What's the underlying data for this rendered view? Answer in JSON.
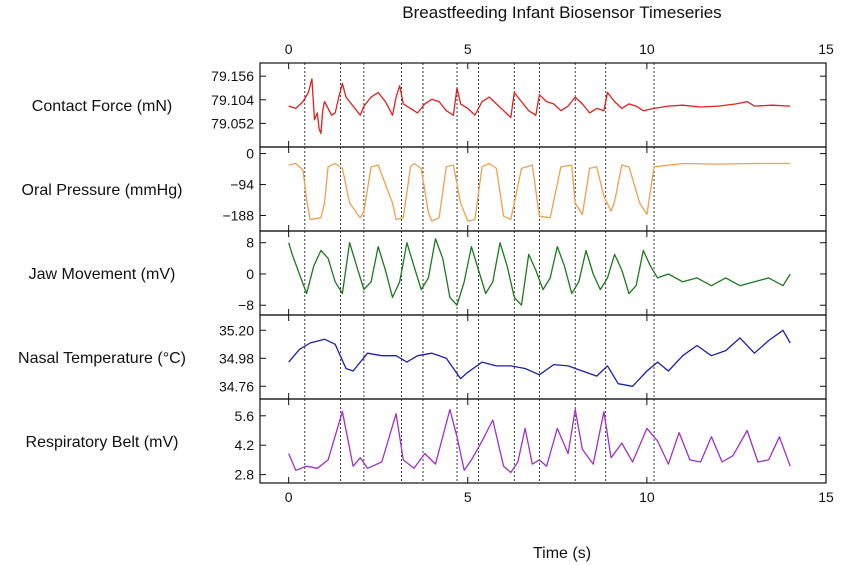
{
  "chart_data": {
    "type": "line",
    "title": "Breastfeeding Infant Biosensor Timeseries",
    "xlabel": "Time (s)",
    "xlim": [
      -0.8,
      15
    ],
    "xticks": [
      0,
      5,
      10,
      15
    ],
    "xtick_labels": [
      "0",
      "5",
      "10",
      "15"
    ],
    "event_lines_s": [
      0.45,
      1.45,
      2.1,
      3.15,
      3.75,
      4.7,
      5.3,
      6.3,
      7.0,
      8.0,
      8.85,
      10.2
    ],
    "panels": [
      {
        "id": "contact-force",
        "ylabel": "Contact Force (mN)",
        "color": "#e02020",
        "ylim": [
          79.0,
          79.185
        ],
        "yticks": [
          79.052,
          79.104,
          79.156
        ],
        "ytick_labels": [
          "79.052",
          "79.104",
          "79.156"
        ],
        "x": [
          0,
          0.2,
          0.4,
          0.55,
          0.65,
          0.72,
          0.8,
          0.85,
          0.9,
          0.95,
          1.0,
          1.1,
          1.2,
          1.3,
          1.4,
          1.5,
          1.6,
          1.8,
          2.0,
          2.1,
          2.3,
          2.5,
          2.7,
          2.9,
          3.0,
          3.1,
          3.2,
          3.4,
          3.6,
          3.8,
          4.0,
          4.2,
          4.4,
          4.6,
          4.7,
          4.8,
          5.0,
          5.2,
          5.4,
          5.6,
          5.8,
          6.0,
          6.2,
          6.3,
          6.5,
          6.7,
          6.9,
          7.0,
          7.2,
          7.4,
          7.6,
          7.8,
          8.0,
          8.2,
          8.4,
          8.6,
          8.8,
          8.9,
          9.1,
          9.3,
          9.5,
          9.7,
          9.9,
          10.2,
          10.6,
          11.0,
          11.5,
          12.0,
          12.5,
          12.8,
          13.0,
          13.5,
          14.0
        ],
        "y": [
          79.09,
          79.085,
          79.1,
          79.12,
          79.15,
          79.06,
          79.075,
          79.04,
          79.03,
          79.08,
          79.1,
          79.085,
          79.07,
          79.075,
          79.11,
          79.14,
          79.11,
          79.09,
          79.07,
          79.09,
          79.11,
          79.12,
          79.1,
          79.07,
          79.11,
          79.135,
          79.095,
          79.085,
          79.075,
          79.095,
          79.105,
          79.1,
          79.08,
          79.07,
          79.13,
          79.095,
          79.085,
          79.07,
          79.1,
          79.11,
          79.095,
          79.08,
          79.065,
          79.12,
          79.1,
          79.08,
          79.07,
          79.115,
          79.1,
          79.095,
          79.08,
          79.09,
          79.11,
          79.095,
          79.075,
          79.085,
          79.08,
          79.12,
          79.1,
          79.085,
          79.095,
          79.09,
          79.08,
          79.085,
          79.09,
          79.092,
          79.088,
          79.09,
          79.095,
          79.1,
          79.09,
          79.092,
          79.09
        ]
      },
      {
        "id": "oral-pressure",
        "ylabel": "Oral Pressure (mmHg)",
        "color": "#f0a050",
        "ylim": [
          -235,
          20
        ],
        "yticks": [
          -188,
          -94,
          0
        ],
        "ytick_labels": [
          "−188",
          "−94",
          "0"
        ],
        "x": [
          0,
          0.2,
          0.4,
          0.5,
          0.6,
          0.9,
          1.0,
          1.1,
          1.3,
          1.5,
          1.7,
          2.0,
          2.1,
          2.3,
          2.5,
          2.9,
          3.0,
          3.2,
          3.4,
          3.5,
          3.7,
          3.9,
          4.0,
          4.2,
          4.4,
          4.6,
          4.8,
          5.0,
          5.2,
          5.4,
          5.6,
          5.8,
          6.0,
          6.2,
          6.5,
          6.8,
          7.0,
          7.3,
          7.6,
          7.9,
          8.0,
          8.2,
          8.4,
          8.6,
          8.8,
          9.0,
          9.1,
          9.3,
          9.5,
          9.8,
          10.0,
          10.2,
          11.0,
          12.0,
          13.0,
          14.0
        ],
        "y": [
          -35,
          -30,
          -50,
          -140,
          -200,
          -195,
          -150,
          -40,
          -30,
          -45,
          -150,
          -195,
          -175,
          -40,
          -35,
          -150,
          -200,
          -195,
          -40,
          -30,
          -45,
          -180,
          -205,
          -195,
          -40,
          -35,
          -150,
          -205,
          -200,
          -40,
          -30,
          -45,
          -190,
          -200,
          -45,
          -35,
          -190,
          -195,
          -40,
          -35,
          -150,
          -185,
          -45,
          -40,
          -130,
          -175,
          -145,
          -35,
          -40,
          -150,
          -185,
          -40,
          -30,
          -32,
          -30,
          -30
        ]
      },
      {
        "id": "jaw-movement",
        "ylabel": "Jaw Movement (mV)",
        "color": "#1c7a1c",
        "ylim": [
          -10.5,
          11
        ],
        "yticks": [
          -8,
          0,
          8
        ],
        "ytick_labels": [
          "−8",
          "0",
          "8"
        ],
        "x": [
          0,
          0.1,
          0.3,
          0.5,
          0.7,
          0.9,
          1.1,
          1.3,
          1.5,
          1.7,
          1.9,
          2.1,
          2.3,
          2.5,
          2.7,
          2.9,
          3.1,
          3.3,
          3.5,
          3.7,
          3.9,
          4.1,
          4.3,
          4.5,
          4.7,
          4.9,
          5.1,
          5.3,
          5.5,
          5.7,
          5.9,
          6.1,
          6.3,
          6.5,
          6.7,
          6.9,
          7.1,
          7.3,
          7.5,
          7.7,
          7.9,
          8.1,
          8.3,
          8.5,
          8.7,
          8.9,
          9.1,
          9.3,
          9.5,
          9.7,
          9.9,
          10.1,
          10.3,
          10.6,
          11.0,
          11.4,
          11.8,
          12.2,
          12.6,
          13.0,
          13.4,
          13.8,
          14.0
        ],
        "y": [
          8,
          5,
          0,
          -5,
          2,
          6,
          4,
          -2,
          -5,
          8,
          2,
          -4,
          -2,
          7,
          1,
          -6,
          -2,
          8,
          2,
          -4,
          -1,
          9,
          4,
          -6,
          -8,
          -2,
          7,
          1,
          -5,
          -2,
          8,
          2,
          -6,
          -8,
          5,
          1,
          -4,
          -1,
          7,
          2,
          -5,
          -2,
          6,
          0,
          -4,
          -1,
          5,
          1,
          -5,
          -3,
          6,
          2,
          -1,
          0,
          -2,
          -1,
          -3,
          -1,
          -3,
          -2,
          -1,
          -3,
          0
        ]
      },
      {
        "id": "nasal-temperature",
        "ylabel": "Nasal Temperature (°C)",
        "color": "#1f1fb0",
        "ylim": [
          34.66,
          35.32
        ],
        "yticks": [
          34.76,
          34.98,
          35.2
        ],
        "ytick_labels": [
          "34.76",
          "34.98",
          "35.20"
        ],
        "x": [
          0,
          0.3,
          0.6,
          1.0,
          1.3,
          1.6,
          1.8,
          2.2,
          2.6,
          3.0,
          3.3,
          3.6,
          4.0,
          4.4,
          4.8,
          5.0,
          5.4,
          5.8,
          6.2,
          6.6,
          7.0,
          7.4,
          7.8,
          8.2,
          8.6,
          8.9,
          9.2,
          9.6,
          10.0,
          10.3,
          10.6,
          11.0,
          11.4,
          11.8,
          12.2,
          12.6,
          13.0,
          13.4,
          13.8,
          14.0
        ],
        "y": [
          34.95,
          35.05,
          35.1,
          35.13,
          35.09,
          34.9,
          34.88,
          35.02,
          35.0,
          35.0,
          34.95,
          35.0,
          35.02,
          34.98,
          34.82,
          34.87,
          34.95,
          34.92,
          34.92,
          34.9,
          34.85,
          34.93,
          34.92,
          34.88,
          34.84,
          34.92,
          34.78,
          34.76,
          34.88,
          34.95,
          34.88,
          35.0,
          35.08,
          35.0,
          35.04,
          35.14,
          35.02,
          35.12,
          35.2,
          35.1
        ]
      },
      {
        "id": "respiratory-belt",
        "ylabel": "Respiratory Belt (mV)",
        "color": "#a030c8",
        "ylim": [
          2.4,
          6.4
        ],
        "yticks": [
          2.8,
          4.2,
          5.6
        ],
        "ytick_labels": [
          "2.8",
          "4.2",
          "5.6"
        ],
        "x": [
          0,
          0.2,
          0.5,
          0.8,
          1.1,
          1.5,
          1.8,
          2.0,
          2.2,
          2.6,
          3.0,
          3.2,
          3.5,
          3.8,
          4.1,
          4.5,
          4.7,
          4.9,
          5.1,
          5.4,
          5.7,
          6.0,
          6.2,
          6.4,
          6.6,
          6.8,
          7.0,
          7.2,
          7.5,
          7.8,
          8.0,
          8.2,
          8.5,
          8.8,
          9.0,
          9.3,
          9.6,
          10.0,
          10.3,
          10.6,
          10.9,
          11.2,
          11.5,
          11.8,
          12.1,
          12.4,
          12.8,
          13.1,
          13.4,
          13.7,
          14.0
        ],
        "y": [
          3.8,
          3.0,
          3.2,
          3.1,
          3.5,
          5.8,
          3.2,
          3.6,
          3.1,
          3.4,
          5.7,
          3.5,
          3.1,
          3.8,
          3.3,
          5.9,
          4.6,
          3.0,
          3.5,
          4.4,
          5.4,
          3.2,
          2.9,
          3.4,
          5.0,
          3.3,
          3.5,
          3.2,
          5.0,
          3.8,
          5.9,
          4.0,
          3.3,
          5.8,
          3.6,
          4.3,
          3.4,
          5.0,
          4.4,
          3.3,
          4.8,
          3.5,
          3.4,
          4.6,
          3.4,
          3.7,
          4.9,
          3.4,
          3.5,
          4.6,
          3.2
        ]
      }
    ]
  }
}
